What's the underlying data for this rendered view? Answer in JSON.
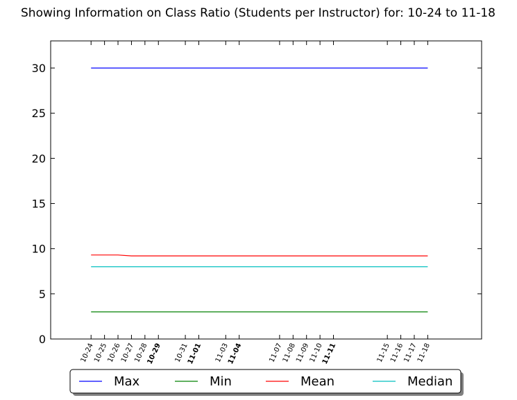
{
  "chart_data": {
    "type": "line",
    "title": "Showing Information on Class Ratio (Students per Instructor) for: 10-24 to 11-18",
    "xlabel": "",
    "ylabel": "",
    "ylim": [
      0,
      33
    ],
    "yticks": [
      0,
      5,
      10,
      15,
      20,
      25,
      30
    ],
    "grid": false,
    "legend_placement": "bottom-center",
    "x": [
      "10-24",
      "10-25",
      "10-26",
      "10-27",
      "10-28",
      "10-29",
      "10-31",
      "11-01",
      "11-03",
      "11-04",
      "11-07",
      "11-08",
      "11-09",
      "11-10",
      "11-11",
      "11-15",
      "11-16",
      "11-17",
      "11-18"
    ],
    "x_day_index": [
      0,
      1,
      2,
      3,
      4,
      5,
      7,
      8,
      10,
      11,
      14,
      15,
      16,
      17,
      18,
      22,
      23,
      24,
      25
    ],
    "x_bold": [
      "10-29",
      "11-01",
      "11-04",
      "11-11"
    ],
    "x_range_days": [
      -3,
      29
    ],
    "series": [
      {
        "name": "Max",
        "color": "#0000ff",
        "values": [
          30,
          30,
          30,
          30,
          30,
          30,
          30,
          30,
          30,
          30,
          30,
          30,
          30,
          30,
          30,
          30,
          30,
          30,
          30
        ]
      },
      {
        "name": "Min",
        "color": "#008000",
        "values": [
          3,
          3,
          3,
          3,
          3,
          3,
          3,
          3,
          3,
          3,
          3,
          3,
          3,
          3,
          3,
          3,
          3,
          3,
          3
        ]
      },
      {
        "name": "Mean",
        "color": "#ff0000",
        "values": [
          9.3,
          9.3,
          9.3,
          9.2,
          9.2,
          9.2,
          9.2,
          9.2,
          9.2,
          9.2,
          9.2,
          9.2,
          9.2,
          9.2,
          9.2,
          9.2,
          9.2,
          9.2,
          9.2
        ]
      },
      {
        "name": "Median",
        "color": "#00bfbf",
        "values": [
          8,
          8,
          8,
          8,
          8,
          8,
          8,
          8,
          8,
          8,
          8,
          8,
          8,
          8,
          8,
          8,
          8,
          8,
          8
        ]
      }
    ]
  }
}
